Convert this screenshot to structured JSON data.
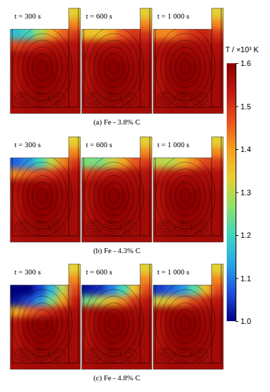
{
  "chart_data": {
    "type": "heatmap",
    "colorbar": {
      "title": "T / ×10³ K",
      "range": [
        1.0,
        1.6
      ],
      "ticks": [
        {
          "value": 1.0,
          "label": "1.0"
        },
        1.1,
        1.2,
        1.3,
        1.4,
        1.5,
        1.6
      ]
    },
    "rows": [
      {
        "caption": "(a) Fe - 3.8% C",
        "panels": [
          {
            "title": "t = 300 s",
            "cells": [
              [
                null,
                null,
                null,
                null,
                null,
                1.33
              ],
              [
                null,
                null,
                null,
                null,
                null,
                1.42
              ],
              [
                1.17,
                1.2,
                1.28,
                1.38,
                1.45,
                1.5
              ],
              [
                1.48,
                1.5,
                1.52,
                1.54,
                1.55,
                1.55
              ],
              [
                1.56,
                1.58,
                1.59,
                1.58,
                1.57,
                1.56
              ],
              [
                1.55,
                1.59,
                1.6,
                1.6,
                1.58,
                1.57
              ],
              [
                1.55,
                1.59,
                1.6,
                1.6,
                1.58,
                1.57
              ],
              [
                1.55,
                1.58,
                1.6,
                1.59,
                1.58,
                1.57
              ],
              [
                1.56,
                1.57,
                1.58,
                1.58,
                1.57,
                1.57
              ],
              [
                1.56,
                1.57,
                1.57,
                1.57,
                1.57,
                1.57
              ]
            ]
          },
          {
            "title": "t = 600 s",
            "cells": [
              [
                null,
                null,
                null,
                null,
                null,
                1.33
              ],
              [
                null,
                null,
                null,
                null,
                null,
                1.42
              ],
              [
                1.35,
                1.35,
                1.4,
                1.46,
                1.5,
                1.5
              ],
              [
                1.53,
                1.55,
                1.56,
                1.56,
                1.56,
                1.55
              ],
              [
                1.56,
                1.58,
                1.59,
                1.58,
                1.57,
                1.56
              ],
              [
                1.55,
                1.59,
                1.6,
                1.6,
                1.58,
                1.57
              ],
              [
                1.55,
                1.59,
                1.6,
                1.6,
                1.58,
                1.57
              ],
              [
                1.55,
                1.58,
                1.6,
                1.59,
                1.58,
                1.57
              ],
              [
                1.56,
                1.57,
                1.58,
                1.58,
                1.57,
                1.57
              ],
              [
                1.56,
                1.57,
                1.57,
                1.57,
                1.57,
                1.57
              ]
            ]
          },
          {
            "title": "t = 1 000 s",
            "cells": [
              [
                null,
                null,
                null,
                null,
                null,
                1.33
              ],
              [
                null,
                null,
                null,
                null,
                null,
                1.42
              ],
              [
                1.42,
                1.42,
                1.46,
                1.5,
                1.52,
                1.5
              ],
              [
                1.54,
                1.56,
                1.57,
                1.57,
                1.56,
                1.55
              ],
              [
                1.56,
                1.58,
                1.59,
                1.58,
                1.57,
                1.56
              ],
              [
                1.55,
                1.59,
                1.6,
                1.6,
                1.58,
                1.57
              ],
              [
                1.55,
                1.59,
                1.6,
                1.6,
                1.58,
                1.57
              ],
              [
                1.55,
                1.58,
                1.6,
                1.59,
                1.58,
                1.57
              ],
              [
                1.56,
                1.57,
                1.58,
                1.58,
                1.57,
                1.57
              ],
              [
                1.56,
                1.57,
                1.57,
                1.57,
                1.57,
                1.57
              ]
            ]
          }
        ]
      },
      {
        "caption": "(b) Fe - 4.3% C",
        "panels": [
          {
            "title": "t = 300 s",
            "cells": [
              [
                null,
                null,
                null,
                null,
                null,
                1.33
              ],
              [
                null,
                null,
                null,
                null,
                null,
                1.42
              ],
              [
                1.08,
                1.12,
                1.2,
                1.3,
                1.42,
                1.5
              ],
              [
                1.42,
                1.45,
                1.48,
                1.5,
                1.53,
                1.55
              ],
              [
                1.56,
                1.58,
                1.59,
                1.58,
                1.57,
                1.56
              ],
              [
                1.55,
                1.59,
                1.6,
                1.6,
                1.58,
                1.57
              ],
              [
                1.55,
                1.59,
                1.6,
                1.6,
                1.58,
                1.57
              ],
              [
                1.55,
                1.58,
                1.6,
                1.59,
                1.58,
                1.57
              ],
              [
                1.56,
                1.57,
                1.58,
                1.58,
                1.57,
                1.57
              ],
              [
                1.56,
                1.57,
                1.57,
                1.57,
                1.57,
                1.57
              ]
            ]
          },
          {
            "title": "t = 600 s",
            "cells": [
              [
                null,
                null,
                null,
                null,
                null,
                1.33
              ],
              [
                null,
                null,
                null,
                null,
                null,
                1.42
              ],
              [
                1.25,
                1.25,
                1.3,
                1.38,
                1.46,
                1.5
              ],
              [
                1.5,
                1.52,
                1.54,
                1.55,
                1.56,
                1.55
              ],
              [
                1.56,
                1.58,
                1.59,
                1.58,
                1.57,
                1.56
              ],
              [
                1.55,
                1.59,
                1.6,
                1.6,
                1.58,
                1.57
              ],
              [
                1.55,
                1.59,
                1.6,
                1.6,
                1.58,
                1.57
              ],
              [
                1.55,
                1.58,
                1.6,
                1.59,
                1.58,
                1.57
              ],
              [
                1.56,
                1.57,
                1.58,
                1.58,
                1.57,
                1.57
              ],
              [
                1.56,
                1.57,
                1.57,
                1.57,
                1.57,
                1.57
              ]
            ]
          },
          {
            "title": "t = 1 000 s",
            "cells": [
              [
                null,
                null,
                null,
                null,
                null,
                1.33
              ],
              [
                null,
                null,
                null,
                null,
                null,
                1.42
              ],
              [
                1.3,
                1.3,
                1.35,
                1.42,
                1.48,
                1.5
              ],
              [
                1.52,
                1.54,
                1.55,
                1.56,
                1.56,
                1.55
              ],
              [
                1.56,
                1.58,
                1.59,
                1.58,
                1.57,
                1.56
              ],
              [
                1.55,
                1.59,
                1.6,
                1.6,
                1.58,
                1.57
              ],
              [
                1.55,
                1.59,
                1.6,
                1.6,
                1.58,
                1.57
              ],
              [
                1.55,
                1.58,
                1.6,
                1.59,
                1.58,
                1.57
              ],
              [
                1.56,
                1.57,
                1.58,
                1.58,
                1.57,
                1.57
              ],
              [
                1.56,
                1.57,
                1.57,
                1.57,
                1.57,
                1.57
              ]
            ]
          }
        ]
      },
      {
        "caption": "(c) Fe - 4.8% C",
        "panels": [
          {
            "title": "t = 300 s",
            "cells": [
              [
                null,
                null,
                null,
                null,
                null,
                1.33
              ],
              [
                null,
                null,
                null,
                null,
                null,
                1.42
              ],
              [
                1.0,
                1.0,
                1.05,
                1.15,
                1.3,
                1.48
              ],
              [
                1.02,
                1.06,
                1.12,
                1.25,
                1.4,
                1.53
              ],
              [
                1.38,
                1.44,
                1.48,
                1.52,
                1.55,
                1.56
              ],
              [
                1.55,
                1.59,
                1.6,
                1.6,
                1.58,
                1.57
              ],
              [
                1.55,
                1.59,
                1.6,
                1.6,
                1.58,
                1.57
              ],
              [
                1.55,
                1.58,
                1.6,
                1.59,
                1.58,
                1.57
              ],
              [
                1.56,
                1.57,
                1.58,
                1.58,
                1.57,
                1.57
              ],
              [
                1.56,
                1.57,
                1.57,
                1.57,
                1.57,
                1.57
              ]
            ]
          },
          {
            "title": "t = 600 s",
            "cells": [
              [
                null,
                null,
                null,
                null,
                null,
                1.33
              ],
              [
                null,
                null,
                null,
                null,
                null,
                1.42
              ],
              [
                1.02,
                1.04,
                1.1,
                1.2,
                1.35,
                1.48
              ],
              [
                1.25,
                1.3,
                1.36,
                1.42,
                1.5,
                1.54
              ],
              [
                1.56,
                1.58,
                1.59,
                1.58,
                1.57,
                1.56
              ],
              [
                1.55,
                1.59,
                1.6,
                1.6,
                1.58,
                1.57
              ],
              [
                1.55,
                1.59,
                1.6,
                1.6,
                1.58,
                1.57
              ],
              [
                1.55,
                1.58,
                1.6,
                1.59,
                1.58,
                1.57
              ],
              [
                1.56,
                1.57,
                1.58,
                1.58,
                1.57,
                1.57
              ],
              [
                1.56,
                1.57,
                1.57,
                1.57,
                1.57,
                1.57
              ]
            ]
          },
          {
            "title": "t = 1 000 s",
            "cells": [
              [
                null,
                null,
                null,
                null,
                null,
                1.33
              ],
              [
                null,
                null,
                null,
                null,
                null,
                1.42
              ],
              [
                1.05,
                1.08,
                1.12,
                1.22,
                1.36,
                1.48
              ],
              [
                1.32,
                1.36,
                1.42,
                1.48,
                1.52,
                1.54
              ],
              [
                1.56,
                1.58,
                1.59,
                1.58,
                1.57,
                1.56
              ],
              [
                1.55,
                1.59,
                1.6,
                1.6,
                1.58,
                1.57
              ],
              [
                1.55,
                1.59,
                1.6,
                1.6,
                1.58,
                1.57
              ],
              [
                1.55,
                1.58,
                1.6,
                1.59,
                1.58,
                1.57
              ],
              [
                1.56,
                1.57,
                1.58,
                1.58,
                1.57,
                1.57
              ],
              [
                1.56,
                1.57,
                1.57,
                1.57,
                1.57,
                1.57
              ]
            ]
          }
        ]
      }
    ]
  }
}
